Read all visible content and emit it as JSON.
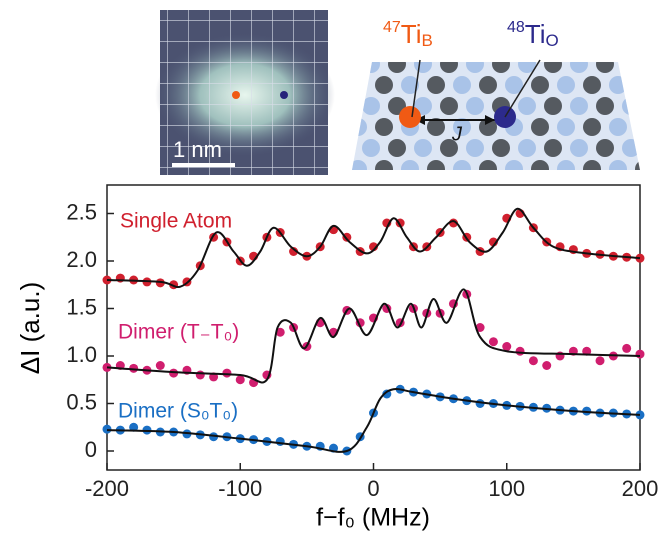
{
  "chart_data": {
    "type": "scatter",
    "y_label": "ΔI (a.u.)",
    "x_label": "f−f₀ (MHz)",
    "xlim": [
      -200,
      200
    ],
    "xticks": [
      -200,
      -100,
      0,
      100,
      200
    ],
    "ylim": [
      -0.2,
      2.8
    ],
    "yticks": [
      0,
      0.5,
      {
        "value": 1,
        "label": "1.0"
      },
      1.5,
      {
        "value": 2,
        "label": "2.0"
      },
      2.5
    ],
    "x": [
      -200,
      -190,
      -180,
      -170,
      -160,
      -150,
      -140,
      -130,
      -120,
      -110,
      -100,
      -90,
      -80,
      -70,
      -60,
      -50,
      -40,
      -30,
      -20,
      -10,
      0,
      10,
      20,
      30,
      40,
      50,
      60,
      70,
      80,
      90,
      100,
      110,
      120,
      130,
      140,
      150,
      160,
      170,
      180,
      190,
      200
    ],
    "series": [
      {
        "name": "Single Atom",
        "color": "#d0202e",
        "values": [
          1.8,
          1.82,
          1.8,
          1.78,
          1.77,
          1.75,
          1.78,
          1.95,
          2.25,
          2.2,
          2.0,
          2.05,
          2.25,
          2.3,
          2.1,
          2.05,
          2.15,
          2.33,
          2.25,
          2.1,
          2.15,
          2.4,
          2.4,
          2.15,
          2.15,
          2.3,
          2.4,
          2.25,
          2.1,
          2.2,
          2.45,
          2.5,
          2.35,
          2.2,
          2.15,
          2.12,
          2.08,
          2.07,
          2.05,
          2.04,
          2.03
        ],
        "fit_x": [
          -200,
          -160,
          -145,
          -132,
          -118,
          -105,
          -95,
          -85,
          -75,
          -62,
          -50,
          -40,
          -30,
          -18,
          -5,
          5,
          15,
          25,
          35,
          47,
          60,
          72,
          85,
          97,
          108,
          120,
          135,
          160,
          200
        ],
        "fit": [
          1.8,
          1.78,
          1.73,
          1.9,
          2.3,
          2.1,
          1.95,
          2.1,
          2.35,
          2.15,
          2.05,
          2.15,
          2.37,
          2.2,
          2.08,
          2.2,
          2.45,
          2.25,
          2.1,
          2.25,
          2.42,
          2.2,
          2.1,
          2.3,
          2.55,
          2.35,
          2.15,
          2.08,
          2.03
        ]
      },
      {
        "name": "Dimer (T₋T₀)",
        "color": "#d01e6e",
        "values": [
          0.88,
          0.9,
          0.87,
          0.85,
          0.9,
          0.82,
          0.85,
          0.8,
          0.78,
          0.82,
          0.75,
          0.72,
          0.8,
          1.25,
          1.3,
          1.1,
          1.35,
          1.25,
          1.48,
          1.35,
          1.4,
          1.5,
          1.35,
          1.5,
          1.45,
          1.45,
          1.55,
          1.65,
          1.3,
          1.15,
          1.1,
          1.05,
          0.95,
          0.9,
          1.0,
          1.05,
          1.05,
          0.95,
          1.0,
          1.08,
          1.02
        ],
        "fit_x": [
          -200,
          -150,
          -100,
          -80,
          -72,
          -62,
          -52,
          -40,
          -30,
          -18,
          -5,
          8,
          18,
          28,
          36,
          45,
          55,
          68,
          80,
          100,
          150,
          200
        ],
        "fit": [
          0.88,
          0.83,
          0.8,
          0.75,
          1.3,
          1.35,
          1.08,
          1.4,
          1.2,
          1.5,
          1.22,
          1.55,
          1.3,
          1.55,
          1.3,
          1.6,
          1.35,
          1.7,
          1.2,
          1.05,
          1.02,
          1.0
        ]
      },
      {
        "name": "Dimer (S₀T₀)",
        "color": "#1a6fc4",
        "values": [
          0.23,
          0.22,
          0.25,
          0.22,
          0.2,
          0.2,
          0.18,
          0.17,
          0.15,
          0.15,
          0.13,
          0.12,
          0.1,
          0.1,
          0.07,
          0.05,
          0.05,
          0.03,
          0.0,
          0.15,
          0.4,
          0.6,
          0.65,
          0.62,
          0.6,
          0.57,
          0.55,
          0.53,
          0.5,
          0.5,
          0.48,
          0.47,
          0.46,
          0.45,
          0.43,
          0.42,
          0.42,
          0.4,
          0.4,
          0.39,
          0.38
        ],
        "fit_x": [
          -200,
          -150,
          -100,
          -50,
          -20,
          -5,
          5,
          15,
          30,
          60,
          100,
          150,
          200
        ],
        "fit": [
          0.22,
          0.2,
          0.13,
          0.05,
          0.0,
          0.25,
          0.55,
          0.65,
          0.62,
          0.55,
          0.48,
          0.42,
          0.38
        ]
      }
    ],
    "fit_color": "#111111",
    "insets": {
      "scale_bar": "1 nm",
      "atom_a": {
        "mass": "47",
        "element": "Ti",
        "site": "B"
      },
      "atom_b": {
        "mass": "48",
        "element": "Ti",
        "site": "O"
      },
      "coupling": "J"
    }
  }
}
